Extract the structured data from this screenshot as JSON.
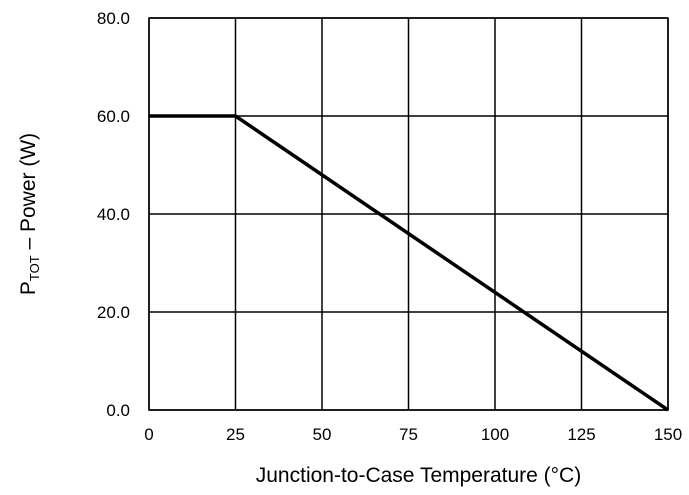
{
  "chart_data": {
    "type": "line",
    "title": "",
    "xlabel": "Junction-to-Case Temperature (°C)",
    "ylabel": {
      "main": "P",
      "subscript": "TOT",
      "rest": " – Power (W)"
    },
    "xlim": [
      0,
      150
    ],
    "ylim": [
      0,
      80
    ],
    "x_ticks": [
      0,
      25,
      50,
      75,
      100,
      125,
      150
    ],
    "x_tick_labels": [
      "0",
      "25",
      "50",
      "75",
      "100",
      "125",
      "150"
    ],
    "y_ticks": [
      0,
      20,
      40,
      60,
      80
    ],
    "y_tick_labels": [
      "0.0",
      "20.0",
      "40.0",
      "60.0",
      "80.0"
    ],
    "grid": true,
    "legend": "none",
    "series": [
      {
        "x": [
          0,
          25,
          150
        ],
        "y": [
          60,
          60,
          0
        ],
        "color": "#000000"
      }
    ]
  }
}
